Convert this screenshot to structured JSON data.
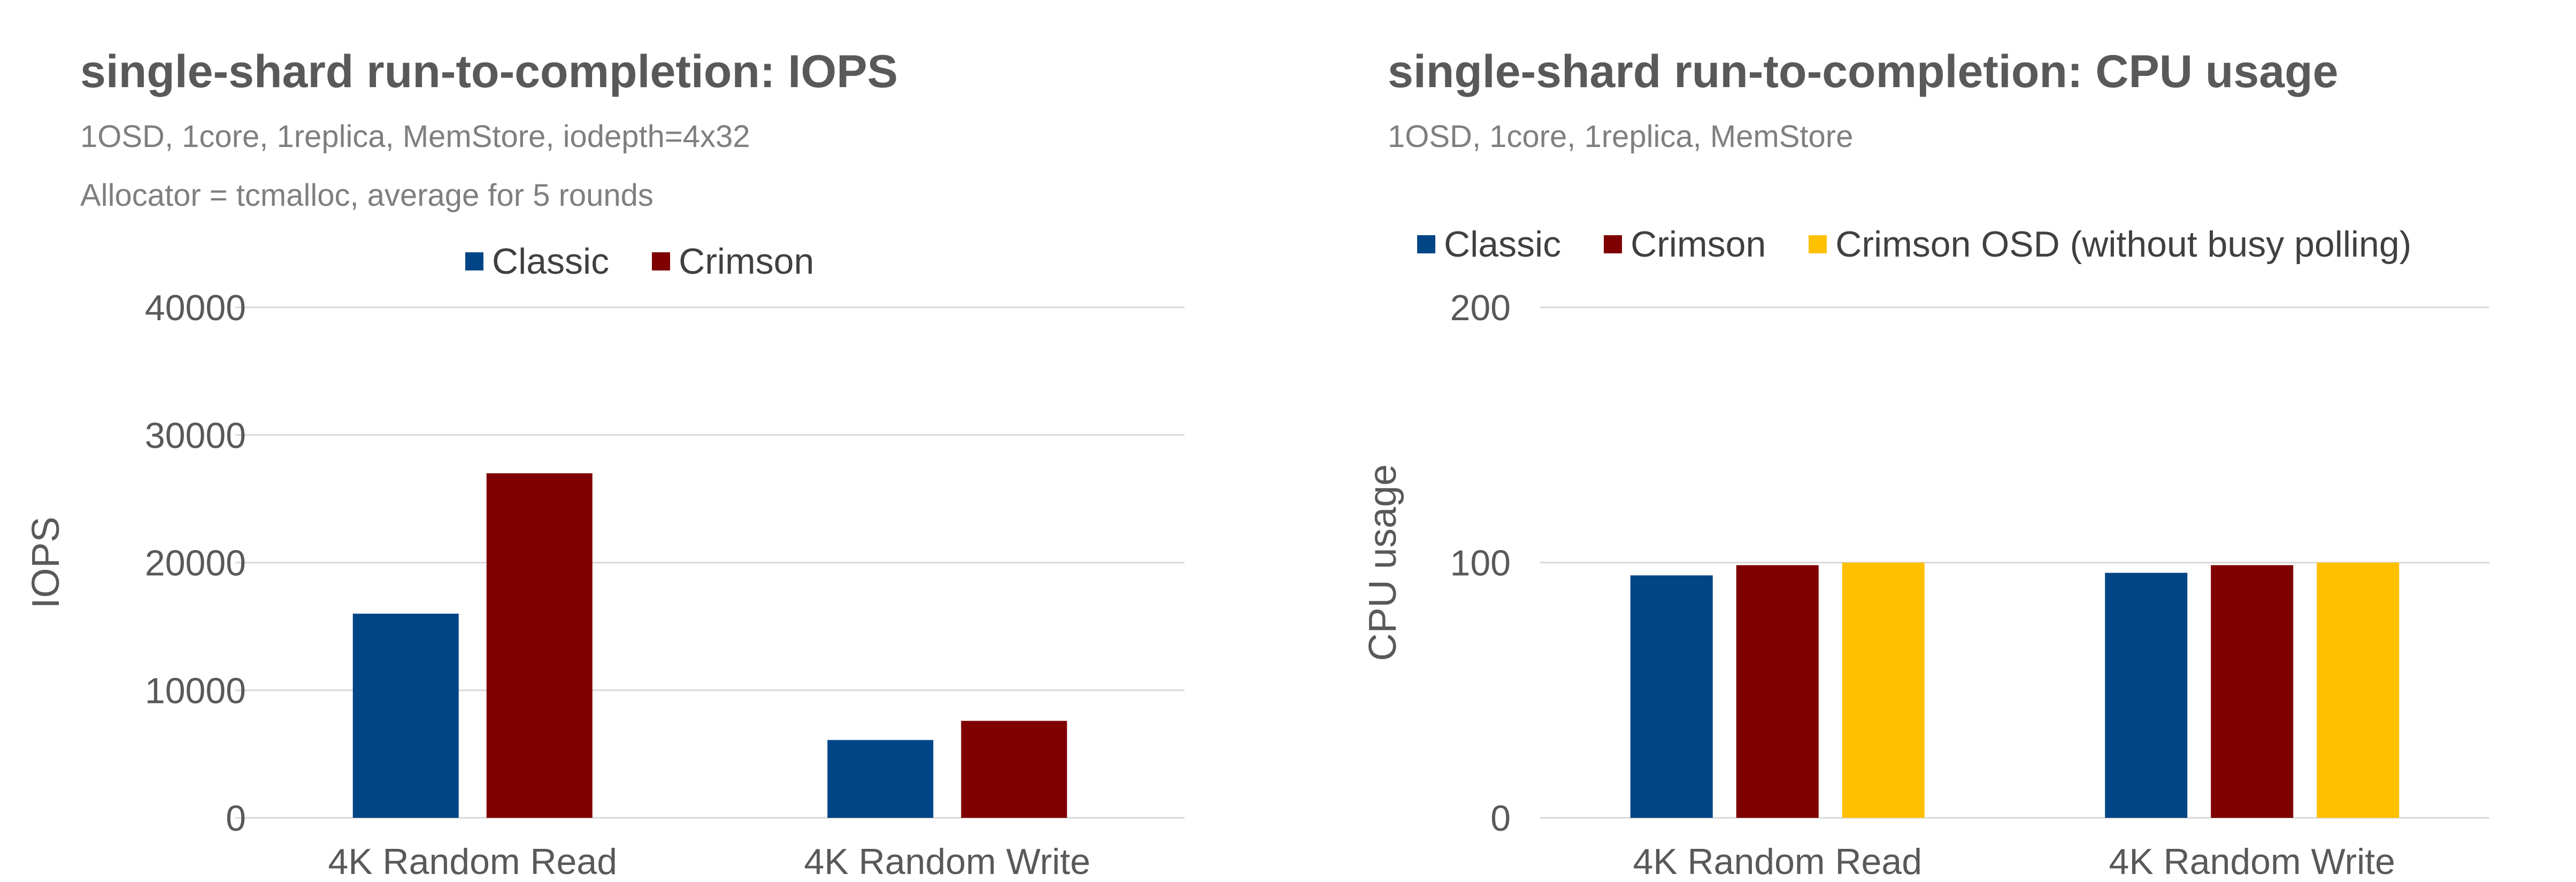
{
  "chart_data": [
    {
      "type": "bar",
      "title": "single-shard run-to-completion: IOPS",
      "subtitle_lines": [
        "1OSD, 1core, 1replica, MemStore, iodepth=4x32",
        "Allocator = tcmalloc, average for 5 rounds"
      ],
      "categories": [
        "4K Random Read",
        "4K Random Write"
      ],
      "series": [
        {
          "name": "Classic",
          "color": "#004586",
          "values": [
            16000,
            6100
          ]
        },
        {
          "name": "Crimson",
          "color": "#7f0000",
          "values": [
            27000,
            7600
          ]
        }
      ],
      "xlabel": "",
      "ylabel": "IOPS",
      "ylim": [
        0,
        40000
      ],
      "yticks": [
        0,
        10000,
        20000,
        30000,
        40000
      ],
      "grid": true,
      "legend_position": "top"
    },
    {
      "type": "bar",
      "title": "single-shard run-to-completion: CPU usage",
      "subtitle_lines": [
        "1OSD, 1core, 1replica, MemStore"
      ],
      "categories": [
        "4K Random Read",
        "4K Random Write"
      ],
      "series": [
        {
          "name": "Classic",
          "color": "#004586",
          "values": [
            95,
            96
          ]
        },
        {
          "name": "Crimson",
          "color": "#7f0000",
          "values": [
            99,
            99
          ]
        },
        {
          "name": "Crimson OSD (without busy polling)",
          "color": "#ffc000",
          "values": [
            100,
            100
          ]
        }
      ],
      "xlabel": "",
      "ylabel": "CPU usage",
      "ylim": [
        0,
        200
      ],
      "yticks": [
        0,
        100,
        200
      ],
      "grid": true,
      "legend_position": "top"
    }
  ]
}
